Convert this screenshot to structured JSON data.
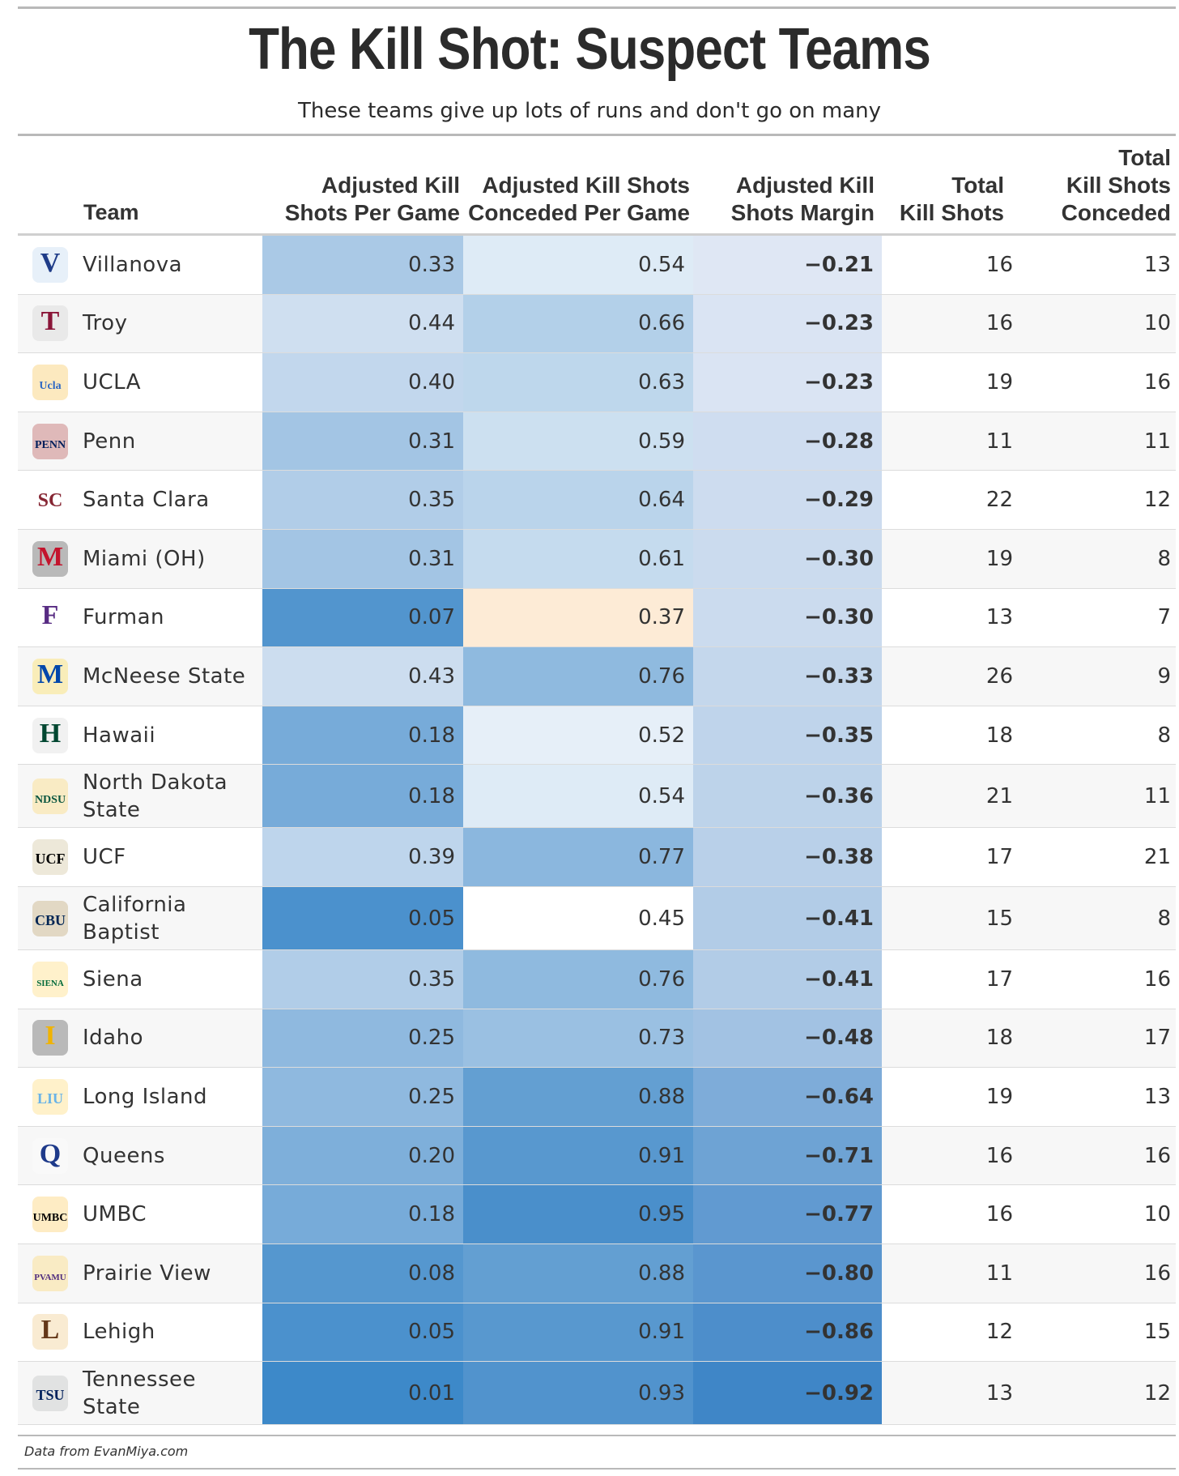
{
  "title": "The Kill Shot: Suspect Teams",
  "subtitle": "These teams give up lots of runs and don't go on many",
  "source": "Data from EvanMiya.com",
  "columns": {
    "team": "Team",
    "ks_per_game": [
      "Adjusted Kill",
      "Shots Per Game"
    ],
    "ksc_per_game": [
      "Adjusted Kill Shots",
      "Conceded Per Game"
    ],
    "margin": [
      "Adjusted Kill",
      "Shots Margin"
    ],
    "total": [
      "Total",
      "Kill Shots"
    ],
    "conceded": [
      "Total",
      "Kill Shots",
      "Conceded"
    ]
  },
  "chart_data": {
    "type": "table",
    "title": "The Kill Shot: Suspect Teams",
    "subtitle": "These teams give up lots of runs and don't go on many",
    "color_scale": {
      "low": "#3a87c8",
      "mid": "#ffffff",
      "high": "#fde9d3",
      "margin_low": "#3f86c7",
      "margin_high": "#dde6f4"
    },
    "rows": [
      {
        "team": [
          "Villanova"
        ],
        "logo": "villanova-logo",
        "ks": "0.33",
        "ksc": "0.54",
        "margin": "−0.21",
        "total": "16",
        "conceded": "13"
      },
      {
        "team": [
          "Troy"
        ],
        "logo": "troy-logo",
        "ks": "0.44",
        "ksc": "0.66",
        "margin": "−0.23",
        "total": "16",
        "conceded": "10"
      },
      {
        "team": [
          "UCLA"
        ],
        "logo": "ucla-logo",
        "ks": "0.40",
        "ksc": "0.63",
        "margin": "−0.23",
        "total": "19",
        "conceded": "16"
      },
      {
        "team": [
          "Penn"
        ],
        "logo": "penn-logo",
        "ks": "0.31",
        "ksc": "0.59",
        "margin": "−0.28",
        "total": "11",
        "conceded": "11"
      },
      {
        "team": [
          "Santa Clara"
        ],
        "logo": "santa-clara-logo",
        "ks": "0.35",
        "ksc": "0.64",
        "margin": "−0.29",
        "total": "22",
        "conceded": "12"
      },
      {
        "team": [
          "Miami (OH)"
        ],
        "logo": "miami-oh-logo",
        "ks": "0.31",
        "ksc": "0.61",
        "margin": "−0.30",
        "total": "19",
        "conceded": "8"
      },
      {
        "team": [
          "Furman"
        ],
        "logo": "furman-logo",
        "ks": "0.07",
        "ksc": "0.37",
        "margin": "−0.30",
        "total": "13",
        "conceded": "7"
      },
      {
        "team": [
          "McNeese State"
        ],
        "logo": "mcneese-logo",
        "ks": "0.43",
        "ksc": "0.76",
        "margin": "−0.33",
        "total": "26",
        "conceded": "9"
      },
      {
        "team": [
          "Hawaii"
        ],
        "logo": "hawaii-logo",
        "ks": "0.18",
        "ksc": "0.52",
        "margin": "−0.35",
        "total": "18",
        "conceded": "8"
      },
      {
        "team": [
          "North Dakota",
          "State"
        ],
        "logo": "ndsu-logo",
        "ks": "0.18",
        "ksc": "0.54",
        "margin": "−0.36",
        "total": "21",
        "conceded": "11"
      },
      {
        "team": [
          "UCF"
        ],
        "logo": "ucf-logo",
        "ks": "0.39",
        "ksc": "0.77",
        "margin": "−0.38",
        "total": "17",
        "conceded": "21"
      },
      {
        "team": [
          "California",
          "Baptist"
        ],
        "logo": "cbu-logo",
        "ks": "0.05",
        "ksc": "0.45",
        "margin": "−0.41",
        "total": "15",
        "conceded": "8"
      },
      {
        "team": [
          "Siena"
        ],
        "logo": "siena-logo",
        "ks": "0.35",
        "ksc": "0.76",
        "margin": "−0.41",
        "total": "17",
        "conceded": "16"
      },
      {
        "team": [
          "Idaho"
        ],
        "logo": "idaho-logo",
        "ks": "0.25",
        "ksc": "0.73",
        "margin": "−0.48",
        "total": "18",
        "conceded": "17"
      },
      {
        "team": [
          "Long Island"
        ],
        "logo": "long-island-logo",
        "ks": "0.25",
        "ksc": "0.88",
        "margin": "−0.64",
        "total": "19",
        "conceded": "13"
      },
      {
        "team": [
          "Queens"
        ],
        "logo": "queens-logo",
        "ks": "0.20",
        "ksc": "0.91",
        "margin": "−0.71",
        "total": "16",
        "conceded": "16"
      },
      {
        "team": [
          "UMBC"
        ],
        "logo": "umbc-logo",
        "ks": "0.18",
        "ksc": "0.95",
        "margin": "−0.77",
        "total": "16",
        "conceded": "10"
      },
      {
        "team": [
          "Prairie View"
        ],
        "logo": "pvamu-logo",
        "ks": "0.08",
        "ksc": "0.88",
        "margin": "−0.80",
        "total": "11",
        "conceded": "16"
      },
      {
        "team": [
          "Lehigh"
        ],
        "logo": "lehigh-logo",
        "ks": "0.05",
        "ksc": "0.91",
        "margin": "−0.86",
        "total": "12",
        "conceded": "15"
      },
      {
        "team": [
          "Tennessee",
          "State"
        ],
        "logo": "tsu-logo",
        "ks": "0.01",
        "ksc": "0.93",
        "margin": "−0.92",
        "total": "13",
        "conceded": "12"
      }
    ]
  },
  "logos": {
    "villanova-logo": {
      "text": "V",
      "color": "#1f3c88",
      "accent": "#9ec3e6"
    },
    "troy-logo": {
      "text": "T",
      "color": "#8a1538",
      "accent": "#c0c0c0"
    },
    "ucla-logo": {
      "text": "Ucla",
      "color": "#2d68c4",
      "accent": "#f2a900"
    },
    "penn-logo": {
      "text": "PENN",
      "color": "#011f5b",
      "accent": "#990000"
    },
    "santa-clara-logo": {
      "text": "SC",
      "color": "#862633",
      "accent": "#ffffff"
    },
    "miami-oh-logo": {
      "text": "M",
      "color": "#c3142d",
      "accent": "#000000"
    },
    "furman-logo": {
      "text": "F",
      "color": "#582c83",
      "accent": "#ffffff"
    },
    "mcneese-logo": {
      "text": "M",
      "color": "#0047ab",
      "accent": "#ffd100"
    },
    "hawaii-logo": {
      "text": "H",
      "color": "#024731",
      "accent": "#c8c8c8"
    },
    "ndsu-logo": {
      "text": "NDSU",
      "color": "#0a5640",
      "accent": "#ffc72c"
    },
    "ucf-logo": {
      "text": "UCF",
      "color": "#000000",
      "accent": "#b7a369"
    },
    "cbu-logo": {
      "text": "CBU",
      "color": "#002554",
      "accent": "#a27d2c"
    },
    "siena-logo": {
      "text": "SIENA",
      "color": "#006a3a",
      "accent": "#ffc82e"
    },
    "idaho-logo": {
      "text": "I",
      "color": "#f1b300",
      "accent": "#000000"
    },
    "long-island-logo": {
      "text": "LIU",
      "color": "#69b3e7",
      "accent": "#ffc72c"
    },
    "queens-logo": {
      "text": "Q",
      "color": "#1e3a8a",
      "accent": "#ffffff"
    },
    "umbc-logo": {
      "text": "UMBC",
      "color": "#000000",
      "accent": "#fdb515"
    },
    "pvamu-logo": {
      "text": "PVAMU",
      "color": "#4f2d7f",
      "accent": "#ffc72c"
    },
    "lehigh-logo": {
      "text": "L",
      "color": "#653819",
      "accent": "#e8b04c"
    },
    "tsu-logo": {
      "text": "TSU",
      "color": "#00205b",
      "accent": "#9ea2a2"
    }
  }
}
